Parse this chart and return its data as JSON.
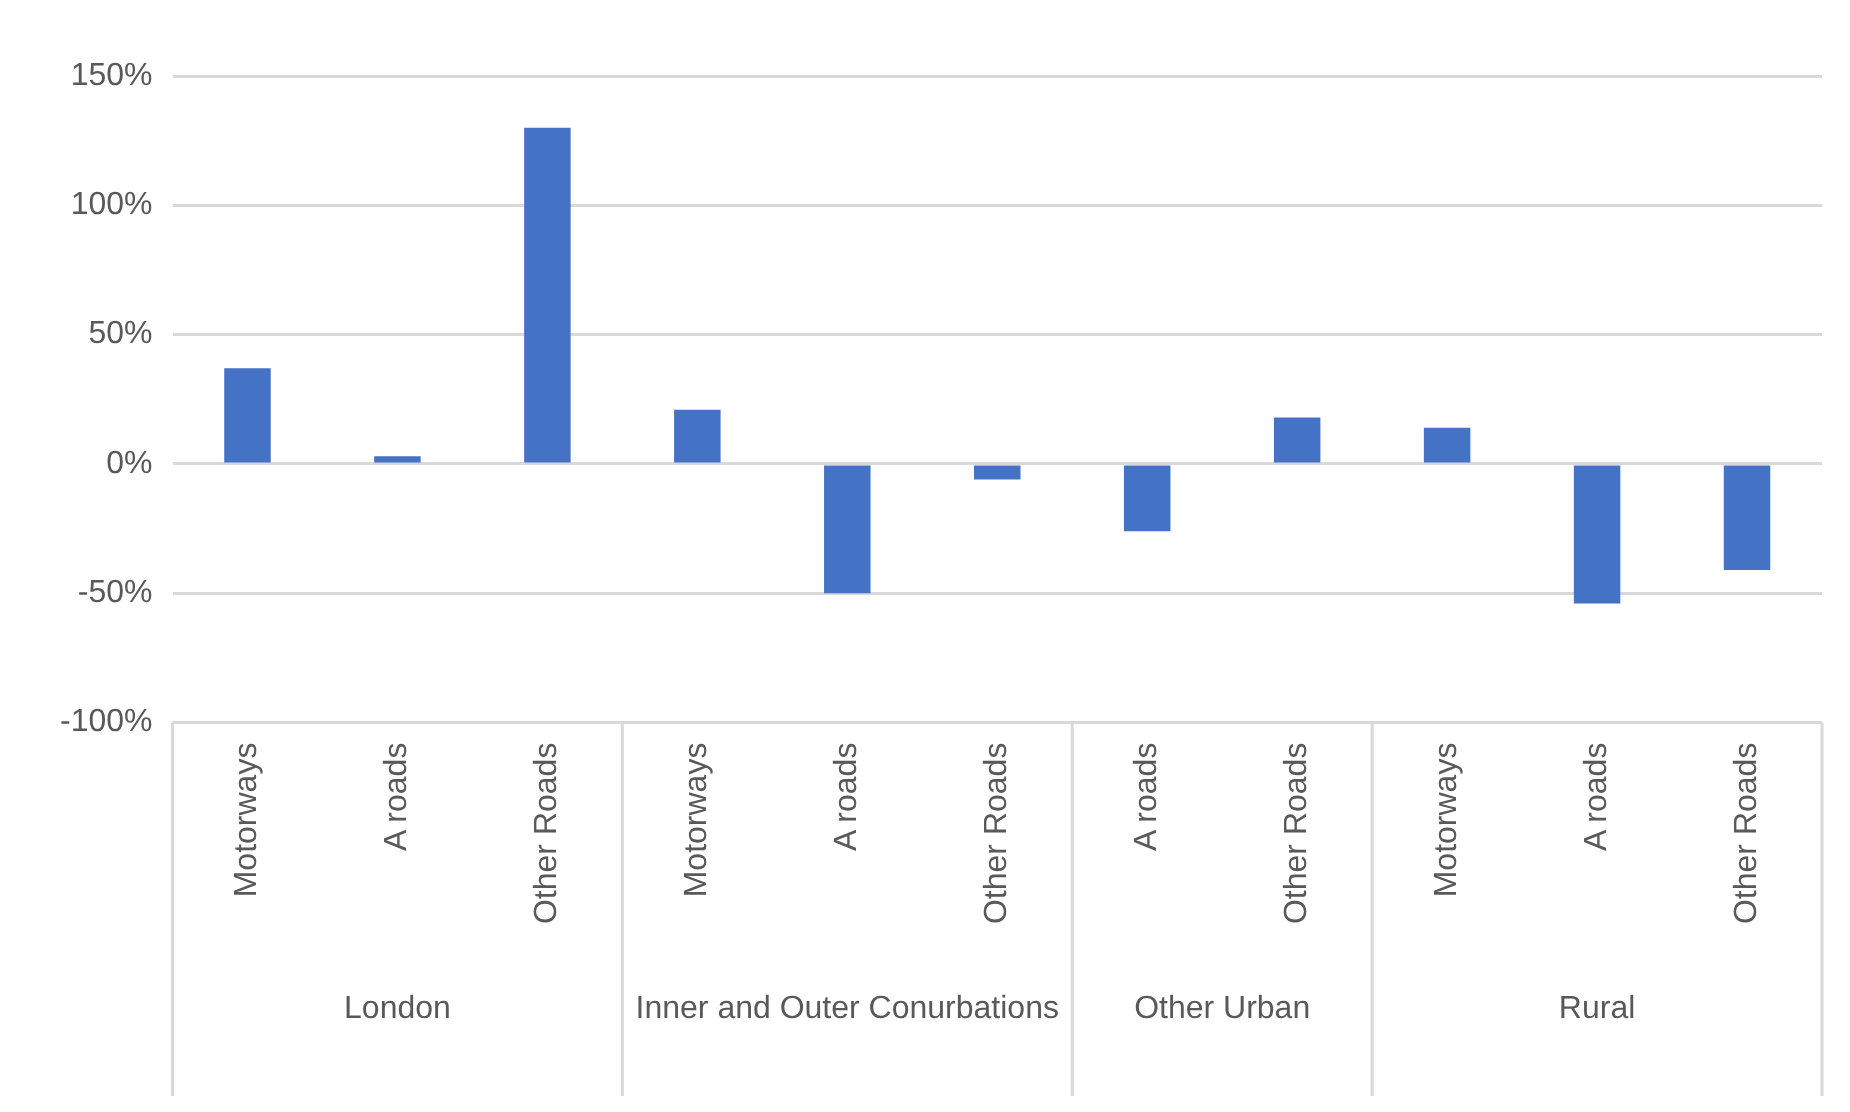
{
  "chart_data": {
    "type": "bar",
    "categories": [
      "Motorways",
      "A roads",
      "Other Roads",
      "Motorways",
      "A roads",
      "Other Roads",
      "A roads",
      "Other Roads",
      "Motorways",
      "A roads",
      "Other Roads"
    ],
    "values": [
      37,
      3,
      130,
      21,
      -50,
      -6,
      -26,
      18,
      14,
      -54,
      -41
    ],
    "color": "#4472c4",
    "ylim": [
      -100,
      150
    ],
    "yticks": [
      {
        "value": -100,
        "label": "-100%"
      },
      {
        "value": -50,
        "label": "-50%"
      },
      {
        "value": 0,
        "label": "0%"
      },
      {
        "value": 50,
        "label": "50%"
      },
      {
        "value": 100,
        "label": "100%"
      },
      {
        "value": 150,
        "label": "150%"
      }
    ],
    "annotations": [
      "London",
      "Inner and Outer Conurbations",
      "Other Urban",
      "Rural"
    ],
    "grid": "y",
    "legend": false
  }
}
